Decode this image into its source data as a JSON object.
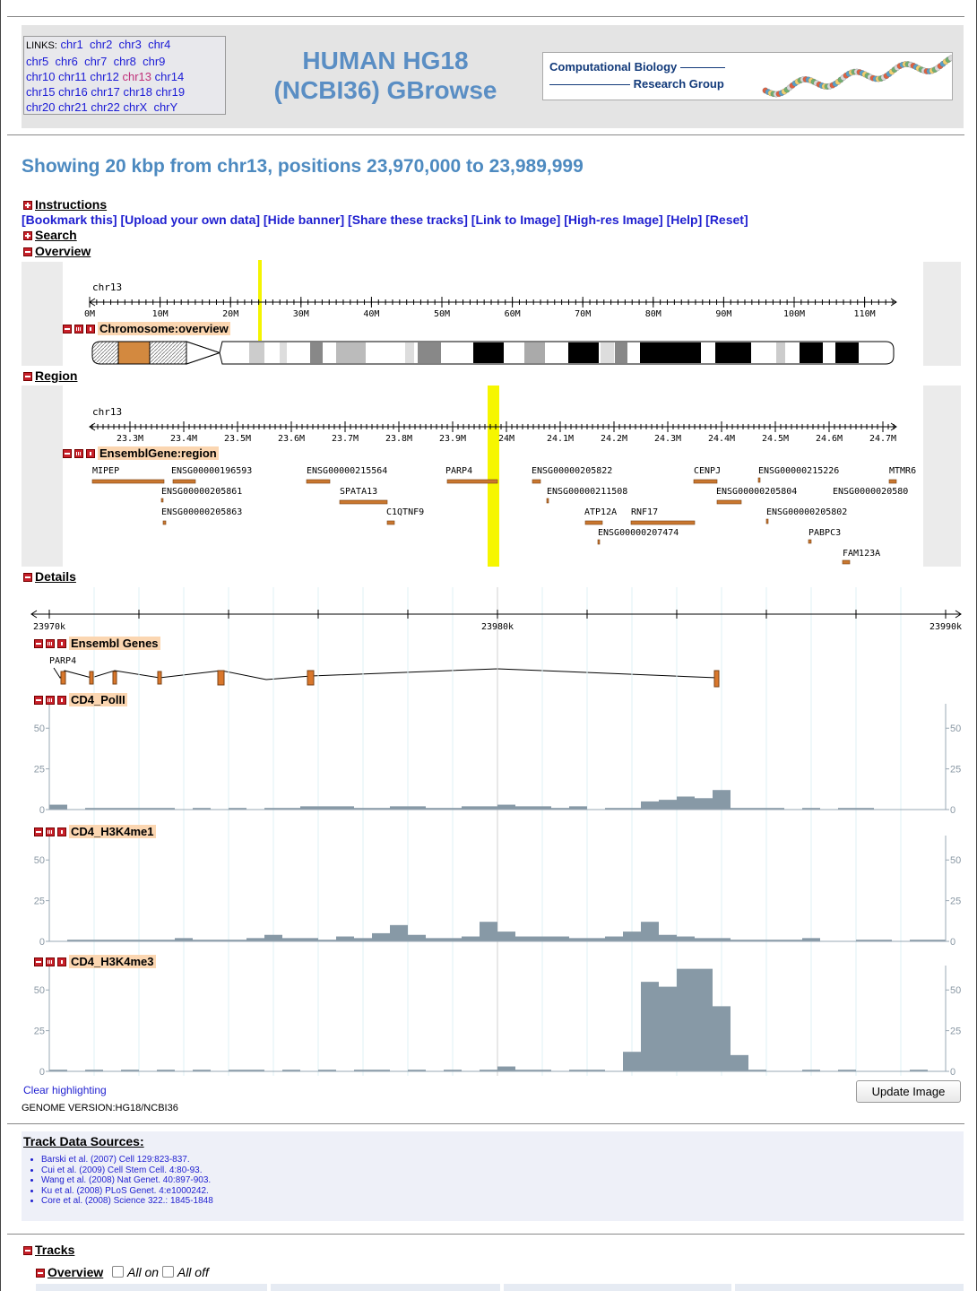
{
  "links": {
    "label": "LINKS:",
    "items": [
      "chr1",
      "chr2",
      "chr3",
      "chr4",
      "chr5",
      "chr6",
      "chr7",
      "chr8",
      "chr9",
      "chr10",
      "chr11",
      "chr12",
      "chr13",
      "chr14",
      "chr15",
      "chr16",
      "chr17",
      "chr18",
      "chr19",
      "chr20",
      "chr21",
      "chr22",
      "chrX",
      "chrY"
    ]
  },
  "title": [
    "HUMAN HG18",
    "(NCBI36) GBrowse"
  ],
  "logo": [
    "Computational Biology",
    "Research Group"
  ],
  "heading": "Showing 20 kbp from chr13, positions 23,970,000 to 23,989,999",
  "sections": {
    "instructions": "Instructions",
    "search": "Search",
    "overview": "Overview",
    "region": "Region",
    "details": "Details"
  },
  "toolbar": [
    "[Bookmark this]",
    "[Upload your own data]",
    "[Hide banner]",
    "[Share these tracks]",
    "[Link to Image]",
    "[High-res Image]",
    "[Help]",
    "[Reset]"
  ],
  "overview": {
    "chrom": "chr13",
    "ticks": [
      "0M",
      "10M",
      "20M",
      "30M",
      "40M",
      "50M",
      "60M",
      "70M",
      "80M",
      "90M",
      "100M",
      "110M"
    ],
    "track": "Chromosome:overview"
  },
  "region": {
    "chrom": "chr13",
    "ticks": [
      "23.3M",
      "23.4M",
      "23.5M",
      "23.6M",
      "23.7M",
      "23.8M",
      "23.9M",
      "24M",
      "24.1M",
      "24.2M",
      "24.3M",
      "24.4M",
      "24.5M",
      "24.6M",
      "24.7M"
    ],
    "track": "EnsemblGene:region",
    "genes": [
      "MIPEP",
      "ENSG00000196593",
      "ENSG00000205861",
      "ENSG00000205863",
      "ENSG00000215564",
      "SPATA13",
      "C1QTNF9",
      "PARP4",
      "ENSG00000205822",
      "ENSG00000211508",
      "ATP12A",
      "RNF17",
      "ENSG00000207474",
      "CENPJ",
      "ENSG00000205804",
      "ENSG00000215226",
      "ENSG00000205802",
      "PABPC3",
      "MTMR6",
      "ENSG0000020580",
      "FAM123A"
    ]
  },
  "details": {
    "ticks": [
      "23970k",
      "23980k",
      "23990k"
    ],
    "genes_track": "Ensembl Genes",
    "gene": "PARP4",
    "tracks": [
      {
        "name": "CD4_PolII",
        "ylim": [
          0,
          65
        ],
        "yticks": [
          0,
          25,
          50
        ],
        "values": [
          3,
          0,
          1,
          1,
          1,
          1,
          1,
          0,
          1,
          0,
          1,
          0,
          1,
          1,
          2,
          2,
          2,
          1,
          1,
          2,
          2,
          1,
          1,
          2,
          2,
          3,
          2,
          2,
          1,
          2,
          0,
          1,
          1,
          5,
          6,
          8,
          7,
          12,
          1,
          1,
          1,
          0,
          1,
          0,
          1,
          1,
          0,
          0,
          0,
          0
        ]
      },
      {
        "name": "CD4_H3K4me1",
        "ylim": [
          0,
          65
        ],
        "yticks": [
          0,
          25,
          50
        ],
        "values": [
          0,
          1,
          1,
          1,
          1,
          1,
          1,
          2,
          1,
          1,
          1,
          2,
          4,
          2,
          2,
          1,
          3,
          2,
          5,
          10,
          4,
          2,
          2,
          3,
          12,
          6,
          3,
          3,
          3,
          2,
          2,
          3,
          6,
          12,
          4,
          3,
          2,
          2,
          1,
          1,
          1,
          1,
          2,
          0,
          0,
          1,
          1,
          0,
          1,
          1
        ]
      },
      {
        "name": "CD4_H3K4me3",
        "ylim": [
          0,
          65
        ],
        "yticks": [
          0,
          25,
          50
        ],
        "values": [
          1,
          0,
          1,
          0,
          1,
          0,
          1,
          0,
          1,
          0,
          1,
          1,
          0,
          1,
          0,
          1,
          0,
          1,
          1,
          0,
          1,
          0,
          1,
          0,
          1,
          3,
          1,
          1,
          0,
          1,
          1,
          0,
          12,
          55,
          52,
          63,
          63,
          40,
          10,
          1,
          0,
          0,
          1,
          0,
          1,
          0,
          0,
          0,
          1,
          0
        ]
      }
    ]
  },
  "footer": {
    "clear": "Clear highlighting",
    "button": "Update Image",
    "genome": "GENOME VERSION:HG18/NCBI36"
  },
  "sources": {
    "title": "Track Data Sources:",
    "items": [
      "Barski et al. (2007) Cell 129:823-837.",
      "Cui et al. (2009) Cell Stem Cell. 4:80-93.",
      "Wang et al. (2008) Nat Genet. 40:897-903.",
      "Ku et al. (2008) PLoS Genet. 4:e1000242.",
      "Core et al. (2008) Science 322.: 1845-1848"
    ]
  },
  "tracks": {
    "title": "Tracks",
    "overview": "Overview",
    "all_on": "All on",
    "all_off": "All off"
  }
}
